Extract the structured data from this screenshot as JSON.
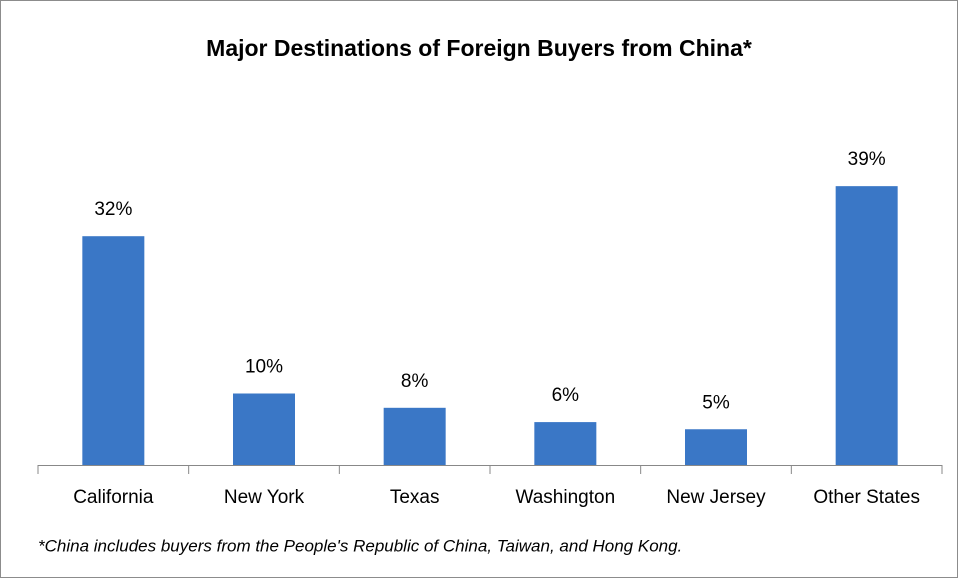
{
  "chart_data": {
    "type": "bar",
    "title": "Major Destinations of Foreign Buyers from China*",
    "categories": [
      "California",
      "New York",
      "Texas",
      "Washington",
      "New Jersey",
      "Other States"
    ],
    "values": [
      32,
      10,
      8,
      6,
      5,
      39
    ],
    "value_labels": [
      "32%",
      "10%",
      "8%",
      "6%",
      "5%",
      "39%"
    ],
    "color": "#3a77c6",
    "footnote": "*China includes buyers from the People's Republic of China, Taiwan, and Hong Kong."
  }
}
